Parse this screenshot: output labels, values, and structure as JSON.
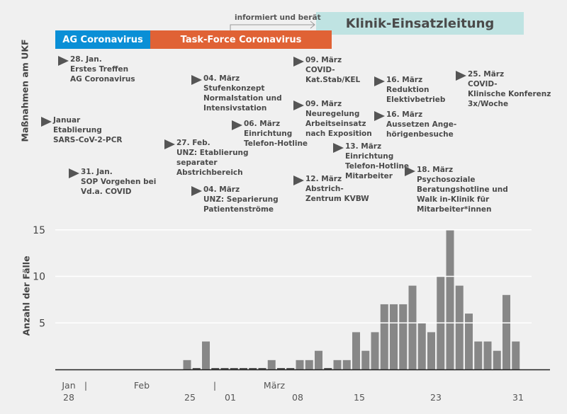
{
  "bands": {
    "ag": "AG Coronavirus",
    "taskforce": "Task-Force Coronavirus",
    "kel": "Klinik-Einsatzleitung",
    "informs": "informiert und berät"
  },
  "axis_titles": {
    "measures": "Maßnahmen am UKF",
    "cases": "Anzahl der Fälle"
  },
  "annotations": [
    {
      "date": "28. Jan.",
      "lines": [
        "Erstes Treffen",
        "AG Coronavirus"
      ]
    },
    {
      "date": "Januar",
      "lines": [
        "Etablierung",
        "SARS-CoV-2-PCR"
      ]
    },
    {
      "date": "31. Jan.",
      "lines": [
        "SOP Vorgehen bei",
        "Vd.a. COVID"
      ]
    },
    {
      "date": "04. März",
      "lines": [
        "Stufenkonzept",
        "Normalstation und",
        "Intensivstation"
      ]
    },
    {
      "date": "27. Feb.",
      "lines": [
        "UNZ: Etablierung",
        "separater",
        "Abstrichbereich"
      ]
    },
    {
      "date": "06. März",
      "lines": [
        "Einrichtung",
        "Telefon-Hotline"
      ]
    },
    {
      "date": "04. März",
      "lines": [
        "UNZ: Separierung",
        "Patientenströme"
      ]
    },
    {
      "date": "09. März",
      "lines": [
        "COVID-",
        "Kat.Stab/KEL"
      ]
    },
    {
      "date": "09. März",
      "lines": [
        "Neuregelung",
        "Arbeitseinsatz",
        "nach Exposition"
      ]
    },
    {
      "date": "12. März",
      "lines": [
        "Abstrich-",
        "Zentrum KVBW"
      ]
    },
    {
      "date": "13. März",
      "lines": [
        "Einrichtung",
        "Telefon-Hotline",
        "Mitarbeiter"
      ]
    },
    {
      "date": "16. März",
      "lines": [
        "Reduktion",
        "Elektivbetrieb"
      ]
    },
    {
      "date": "16. März",
      "lines": [
        "Aussetzen Ange-",
        "hörigenbesuche"
      ]
    },
    {
      "date": "18. März",
      "lines": [
        "Psychosoziale",
        "Beratungshotline und",
        "Walk in-Klinik für",
        "Mitarbeiter*innen"
      ]
    },
    {
      "date": "25. März",
      "lines": [
        "COVID-",
        "Klinische Konferenz",
        "3x/Woche"
      ]
    }
  ],
  "chart_data": {
    "type": "bar",
    "title": "",
    "xlabel": "",
    "ylabel": "Anzahl der Fälle",
    "ylim": [
      0,
      15
    ],
    "yticks": [
      5,
      10,
      15
    ],
    "grid": true,
    "categories": [
      "25. Feb",
      "26. Feb",
      "27. Feb",
      "28. Feb",
      "29. Feb",
      "01. März",
      "02. März",
      "03. März",
      "04. März",
      "05. März",
      "06. März",
      "07. März",
      "08. März",
      "09. März",
      "10. März",
      "11. März",
      "12. März",
      "13. März",
      "14. März",
      "15. März",
      "16. März",
      "17. März",
      "18. März",
      "19. März",
      "20. März",
      "21. März",
      "22. März",
      "23. März",
      "24. März",
      "25. März",
      "26. März",
      "27. März",
      "28. März",
      "29. März",
      "30. März",
      "31. März"
    ],
    "values": [
      1,
      0,
      3,
      0,
      0,
      0,
      0,
      0,
      0,
      1,
      0,
      0,
      1,
      1,
      2,
      0,
      1,
      1,
      4,
      2,
      4,
      7,
      7,
      7,
      9,
      5,
      4,
      10,
      15,
      9,
      6,
      3,
      3,
      2,
      8,
      3
    ],
    "xticks": [
      {
        "top": "Jan",
        "bottom": "28"
      },
      {
        "top": "|",
        "bottom": ""
      },
      {
        "top": "Feb",
        "bottom": ""
      },
      {
        "top": "",
        "bottom": "25"
      },
      {
        "top": "|",
        "bottom": ""
      },
      {
        "top": "",
        "bottom": "01"
      },
      {
        "top": "März",
        "bottom": ""
      },
      {
        "top": "",
        "bottom": "08"
      },
      {
        "top": "",
        "bottom": "15"
      },
      {
        "top": "",
        "bottom": "23"
      },
      {
        "top": "",
        "bottom": "31"
      }
    ],
    "bar_color": "#878787"
  }
}
